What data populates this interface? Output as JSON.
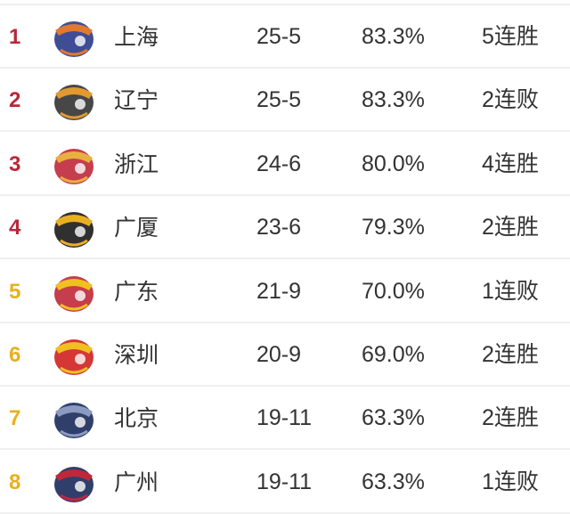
{
  "colors": {
    "rank_top": "#b8283a",
    "rank_other": "#e8b020",
    "divider": "#efefef"
  },
  "rows": [
    {
      "rank": "1",
      "team": "上海",
      "record": "25-5",
      "pct": "83.3%",
      "streak": "5连胜",
      "logo": "sharks-logo",
      "logo_color": "#2a3a8a",
      "logo_accent": "#e07a30"
    },
    {
      "rank": "2",
      "team": "辽宁",
      "record": "25-5",
      "pct": "83.3%",
      "streak": "2连败",
      "logo": "leopards-logo",
      "logo_color": "#333333",
      "logo_accent": "#e09a30"
    },
    {
      "rank": "3",
      "team": "浙江",
      "record": "24-6",
      "pct": "80.0%",
      "streak": "4连胜",
      "logo": "golden-bulls-logo",
      "logo_color": "#c0283a",
      "logo_accent": "#e8b040"
    },
    {
      "rank": "4",
      "team": "广厦",
      "record": "23-6",
      "pct": "79.3%",
      "streak": "2连胜",
      "logo": "lions-logo",
      "logo_color": "#1a1a1a",
      "logo_accent": "#e8b020"
    },
    {
      "rank": "5",
      "team": "广东",
      "record": "21-9",
      "pct": "70.0%",
      "streak": "1连败",
      "logo": "southern-tigers-logo",
      "logo_color": "#c0283a",
      "logo_accent": "#f0c020"
    },
    {
      "rank": "6",
      "team": "深圳",
      "record": "20-9",
      "pct": "69.0%",
      "streak": "2连胜",
      "logo": "leopards-sz-logo",
      "logo_color": "#d02020",
      "logo_accent": "#f0c020"
    },
    {
      "rank": "7",
      "team": "北京",
      "record": "19-11",
      "pct": "63.3%",
      "streak": "2连胜",
      "logo": "ducks-logo",
      "logo_color": "#1a2a5a",
      "logo_accent": "#8a9ac0"
    },
    {
      "rank": "8",
      "team": "广州",
      "record": "19-11",
      "pct": "63.3%",
      "streak": "1连败",
      "logo": "loong-lions-logo",
      "logo_color": "#1a2a5a",
      "logo_accent": "#c0283a"
    }
  ]
}
